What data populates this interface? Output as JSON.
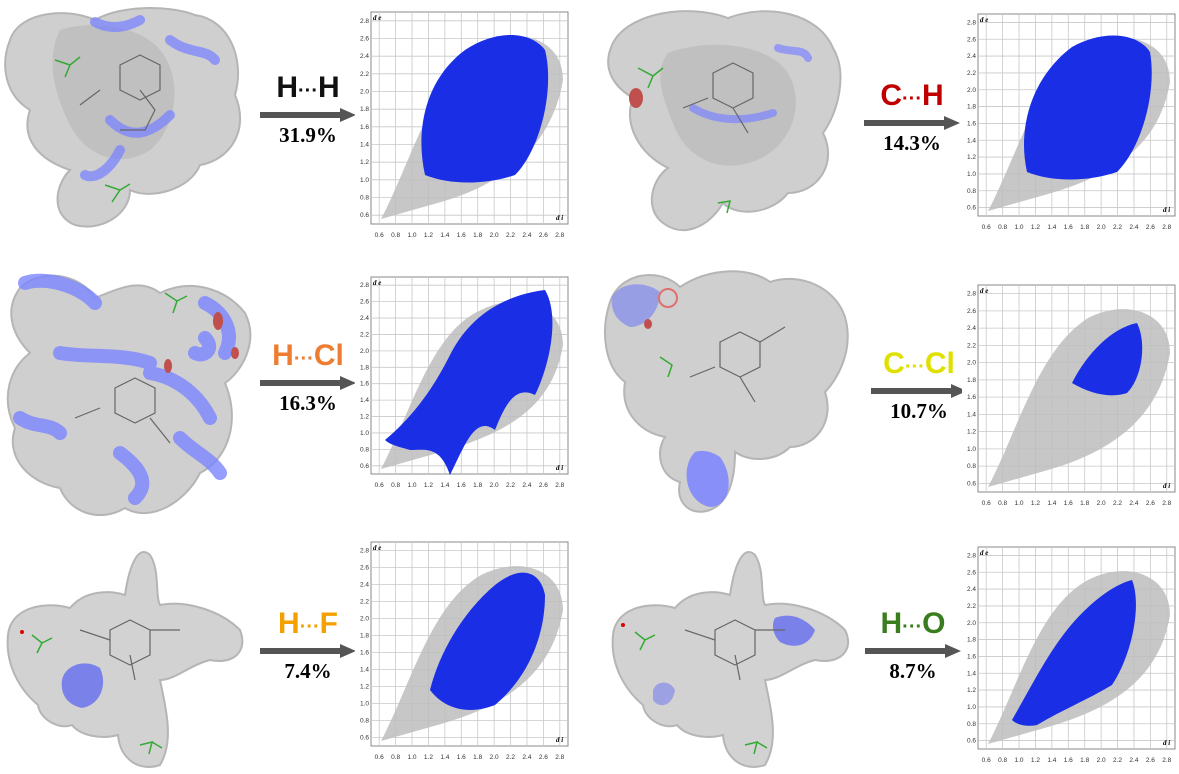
{
  "panels": [
    {
      "contact": {
        "atom1": "H",
        "sep": "···",
        "atom2": "H"
      },
      "percent": "31.9%",
      "label_color": "#111111",
      "bg_color": "#111111"
    },
    {
      "contact": {
        "atom1": "C",
        "sep": "···",
        "atom2": "H"
      },
      "percent": "14.3%",
      "label_color": "#c00000",
      "bg_color": "#c00000"
    },
    {
      "contact": {
        "atom1": "H",
        "sep": "···",
        "atom2": "Cl"
      },
      "percent": "16.3%",
      "label_color": "#ed7d31",
      "bg_color": "#ed7d31"
    },
    {
      "contact": {
        "atom1": "C",
        "sep": "···",
        "atom2": "Cl"
      },
      "percent": "10.7%",
      "label_color": "#e0e000",
      "bg_color": "#e0e000"
    },
    {
      "contact": {
        "atom1": "H",
        "sep": "···",
        "atom2": "F"
      },
      "percent": "7.4%",
      "label_color": "#f4a000",
      "bg_color": "#f4a000"
    },
    {
      "contact": {
        "atom1": "H",
        "sep": "···",
        "atom2": "O"
      },
      "percent": "8.7%",
      "label_color": "#3a7d1e",
      "bg_color": "#3a7d1e"
    }
  ],
  "fingerprint": {
    "de_label": "d e",
    "di_label": "d i",
    "ticks": [
      "0.6",
      "0.8",
      "1.0",
      "1.2",
      "1.4",
      "1.6",
      "1.8",
      "2.0",
      "2.2",
      "2.4",
      "2.6",
      "2.8"
    ]
  },
  "colors": {
    "surface": "#c8c8c8",
    "contact_blue": "#1a2ee6",
    "highlight": "#7b84ff",
    "arrow": "#555555",
    "grid": "#9a9a9a"
  }
}
